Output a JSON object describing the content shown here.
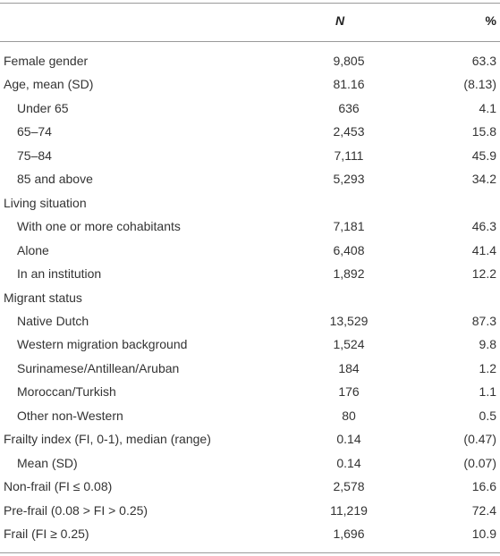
{
  "table": {
    "header": [
      "N",
      "%"
    ],
    "rows": [
      [
        "Female gender",
        "9,805",
        "63.3"
      ],
      [
        "Age, mean (SD)",
        "81.16",
        "(8.13)"
      ],
      [
        "Under 65",
        "636",
        "4.1"
      ],
      [
        "65–74",
        "2,453",
        "15.8"
      ],
      [
        "75–84",
        "7,111",
        "45.9"
      ],
      [
        "85 and above",
        "5,293",
        "34.2"
      ],
      [
        "Living situation"
      ],
      [
        "With one or more cohabitants",
        "7,181",
        "46.3"
      ],
      [
        "Alone",
        "6,408",
        "41.4"
      ],
      [
        "In an institution",
        "1,892",
        "12.2"
      ],
      [
        "Migrant status"
      ],
      [
        "Native Dutch",
        "13,529",
        "87.3"
      ],
      [
        "Western migration background",
        "1,524",
        "9.8"
      ],
      [
        "Surinamese/Antillean/Aruban",
        "184",
        "1.2"
      ],
      [
        "Moroccan/Turkish",
        "176",
        "1.1"
      ],
      [
        "Other non-Western",
        "80",
        "0.5"
      ],
      [
        "Frailty index (FI, 0-1), median (range)",
        "0.14",
        "(0.47)"
      ],
      [
        "Mean (SD)",
        "0.14",
        "(0.07)"
      ],
      [
        "Non-frail (FI ≤ 0.08)",
        "2,578",
        "16.6"
      ],
      [
        "Pre-frail (0.08 > FI > 0.25)",
        "11,219",
        "72.4"
      ],
      [
        "Frail (FI ≥ 0.25)",
        "1,696",
        "10.9"
      ]
    ]
  }
}
